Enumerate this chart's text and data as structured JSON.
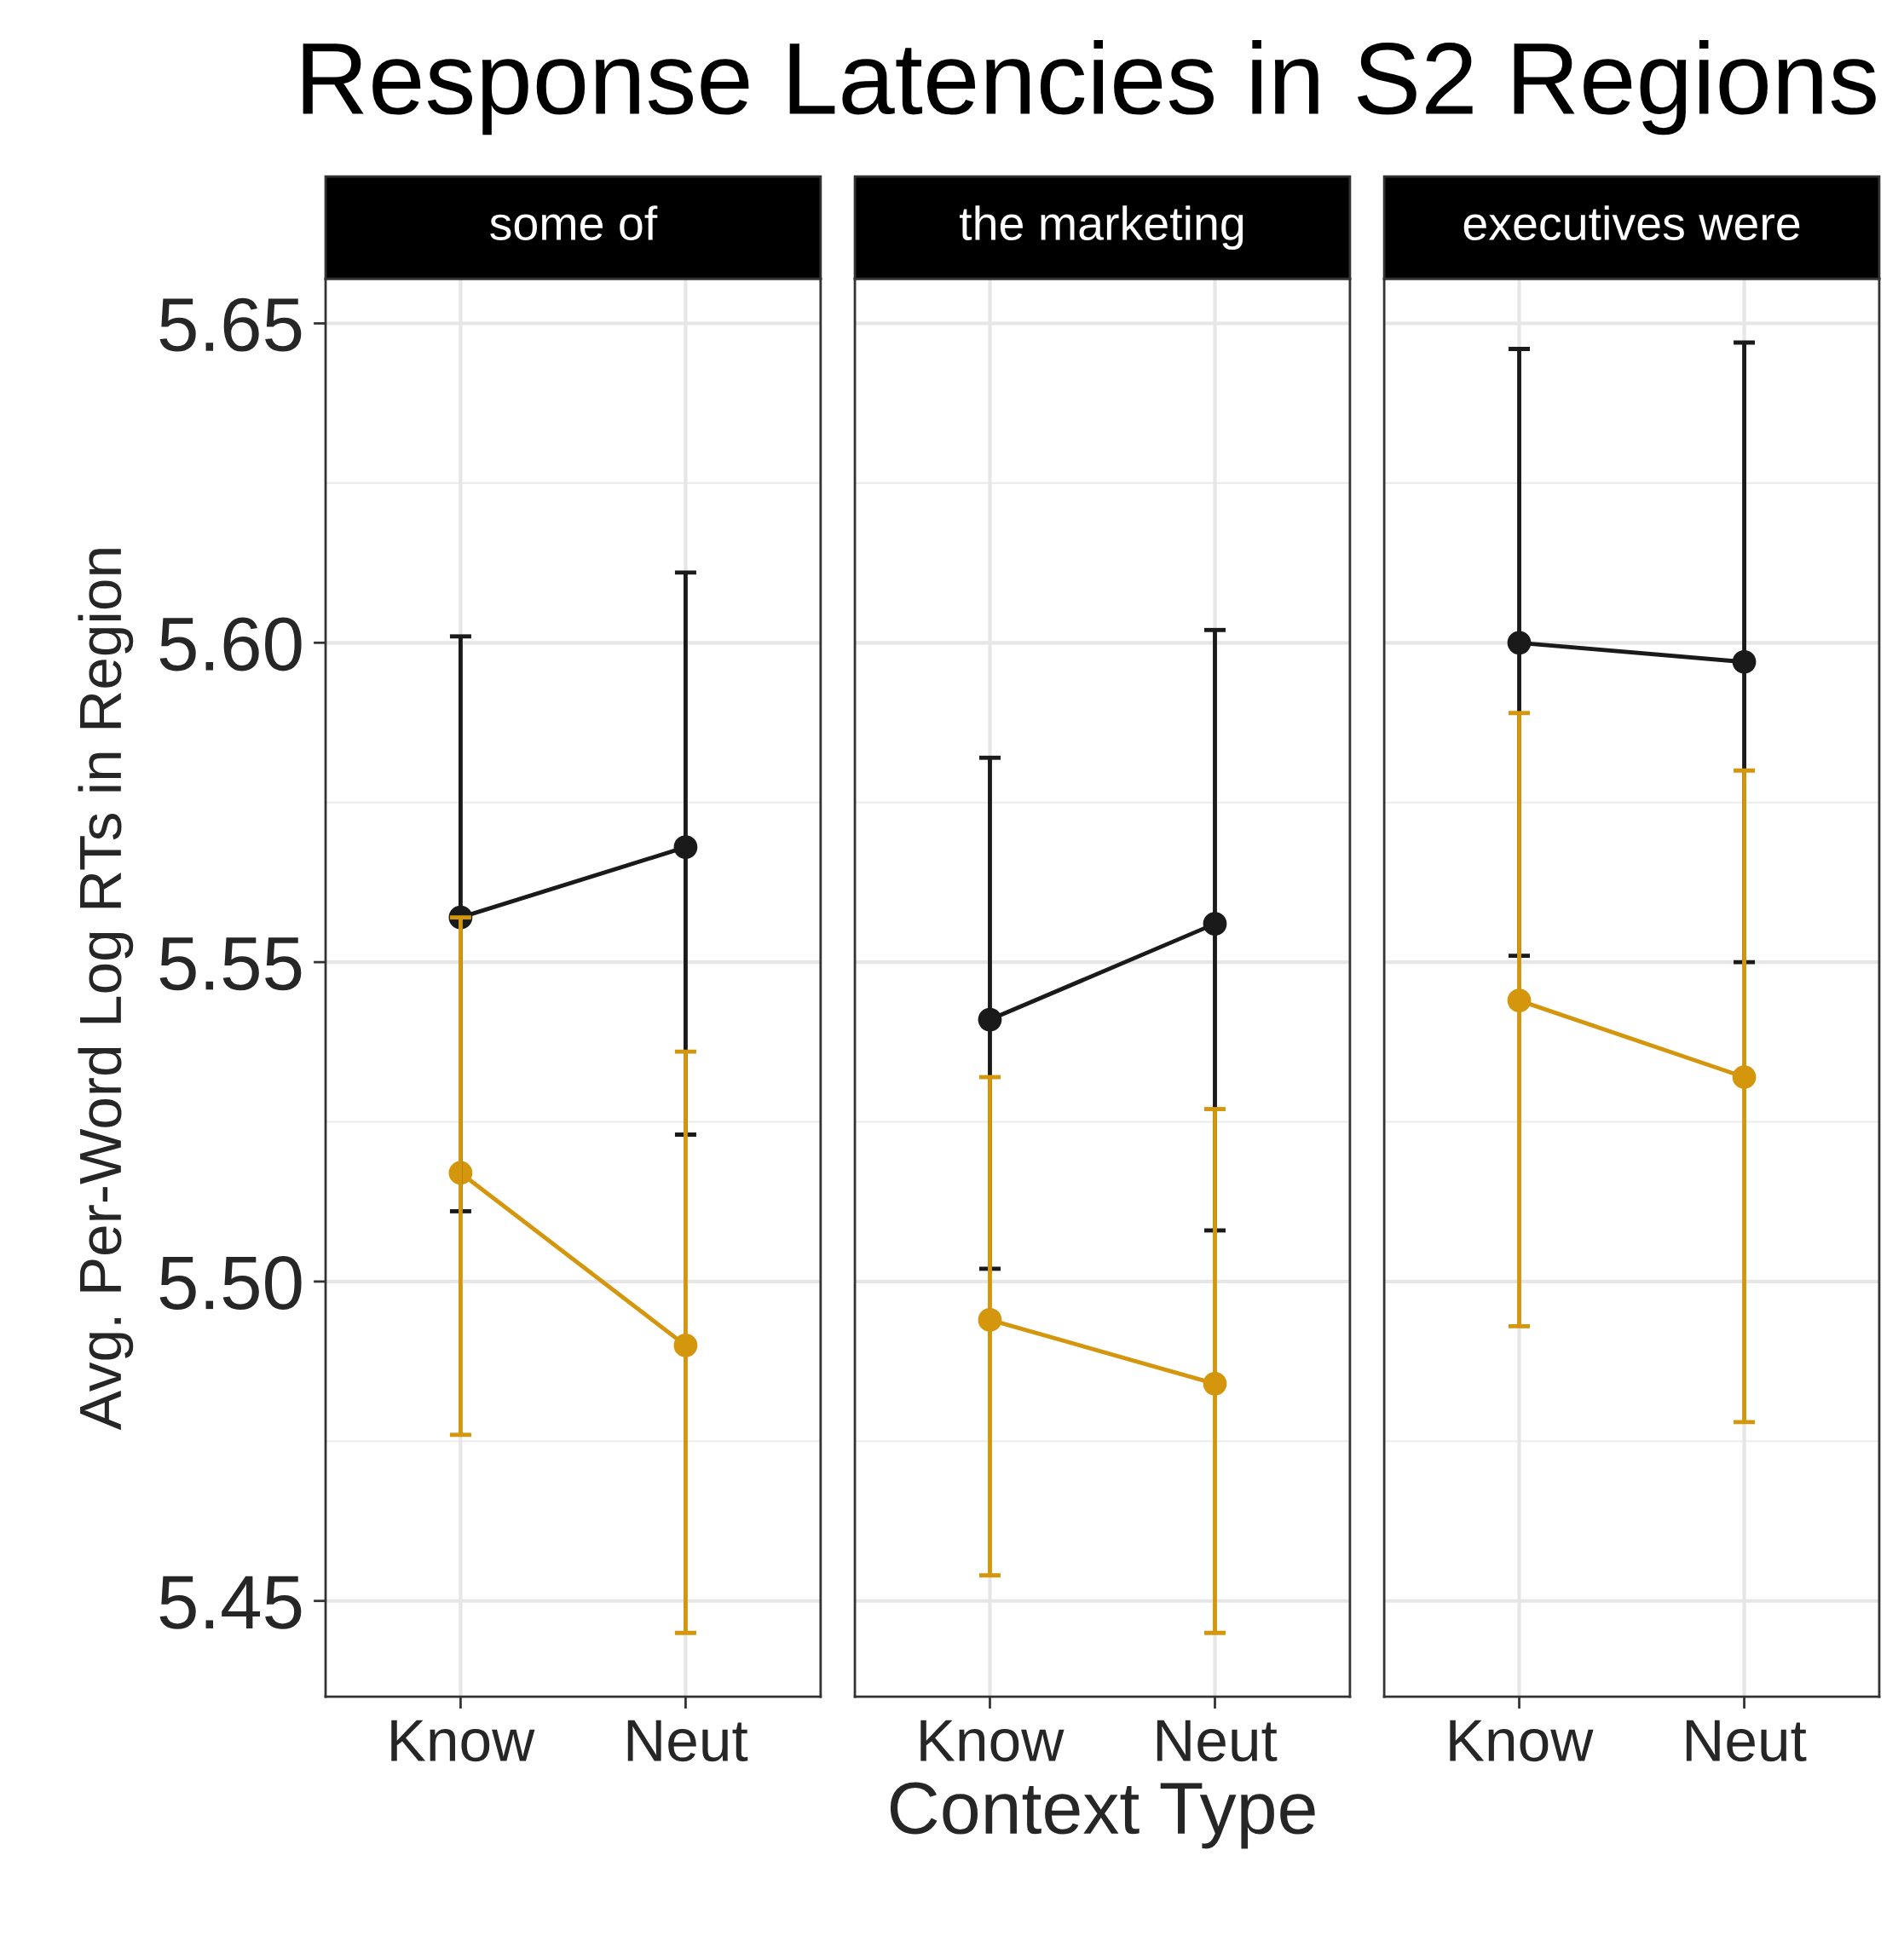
{
  "chart_data": [
    {
      "type": "line",
      "title": "Response Latencies in S2 Regions",
      "subtitle": "some of",
      "ylabel": "Avg. Per-Word Log RTs in Region",
      "categories": [
        "Know",
        "Neut"
      ],
      "ylim": [
        5.435,
        5.657
      ],
      "yticks": [
        {
          "value": 5.45,
          "label": "5.45"
        },
        {
          "value": 5.5,
          "label": "5.50"
        },
        {
          "value": 5.55,
          "label": "5.55"
        },
        {
          "value": 5.6,
          "label": "5.60"
        },
        {
          "value": 5.65,
          "label": "5.65"
        }
      ],
      "grid": true,
      "marker": "circle",
      "line_style": "solid",
      "series": [
        {
          "color": "#1a1a1a",
          "values": [
            5.557,
            5.568
          ],
          "errors": [
            [
              5.511,
              5.601
            ],
            [
              5.523,
              5.611
            ]
          ]
        },
        {
          "color": "#d4960c",
          "values": [
            5.517,
            5.49
          ],
          "errors": [
            [
              5.476,
              5.557
            ],
            [
              5.445,
              5.536
            ]
          ]
        }
      ]
    },
    {
      "type": "line",
      "subtitle": "the marketing",
      "xlabel": "Context Type",
      "categories": [
        "Know",
        "Neut"
      ],
      "ylim": [
        5.435,
        5.657
      ],
      "yticks": [
        5.45,
        5.5,
        5.55,
        5.6,
        5.65
      ],
      "tick_labels": "x",
      "grid": true,
      "marker": "circle",
      "line_style": "solid",
      "series": [
        {
          "color": "#1a1a1a",
          "values": [
            5.541,
            5.556
          ],
          "errors": [
            [
              5.502,
              5.582
            ],
            [
              5.508,
              5.602
            ]
          ]
        },
        {
          "color": "#d4960c",
          "values": [
            5.494,
            5.484
          ],
          "errors": [
            [
              5.454,
              5.532
            ],
            [
              5.445,
              5.527
            ]
          ]
        }
      ]
    },
    {
      "type": "line",
      "subtitle": "executives were",
      "categories": [
        "Know",
        "Neut"
      ],
      "ylim": [
        5.435,
        5.657
      ],
      "yticks": [
        5.45,
        5.5,
        5.55,
        5.6,
        5.65
      ],
      "tick_labels": "x",
      "grid": true,
      "marker": "circle",
      "line_style": "solid",
      "series": [
        {
          "color": "#1a1a1a",
          "values": [
            5.6,
            5.597
          ],
          "errors": [
            [
              5.551,
              5.646
            ],
            [
              5.55,
              5.647
            ]
          ]
        },
        {
          "color": "#d4960c",
          "values": [
            5.544,
            5.532
          ],
          "errors": [
            [
              5.493,
              5.589
            ],
            [
              5.478,
              5.58
            ]
          ]
        }
      ]
    }
  ]
}
